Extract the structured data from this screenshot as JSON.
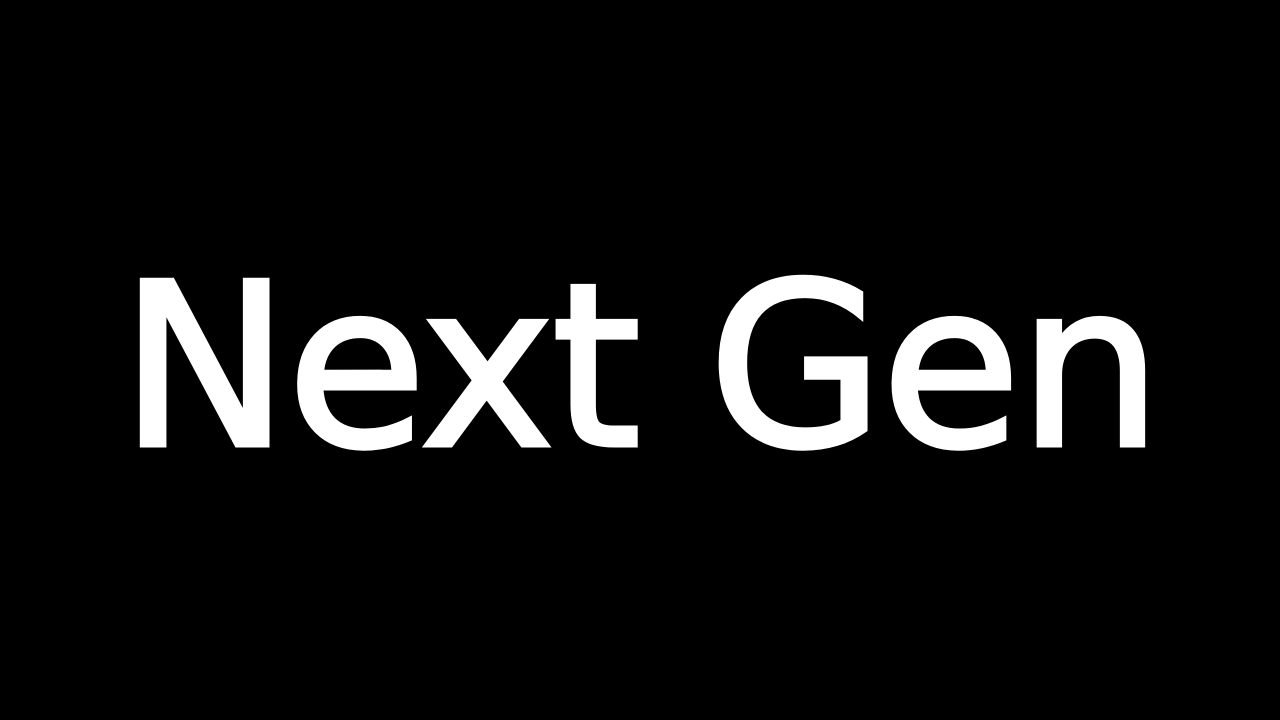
{
  "title_card": {
    "text": "Next Gen"
  },
  "colors": {
    "background": "#000000",
    "text": "#ffffff"
  }
}
